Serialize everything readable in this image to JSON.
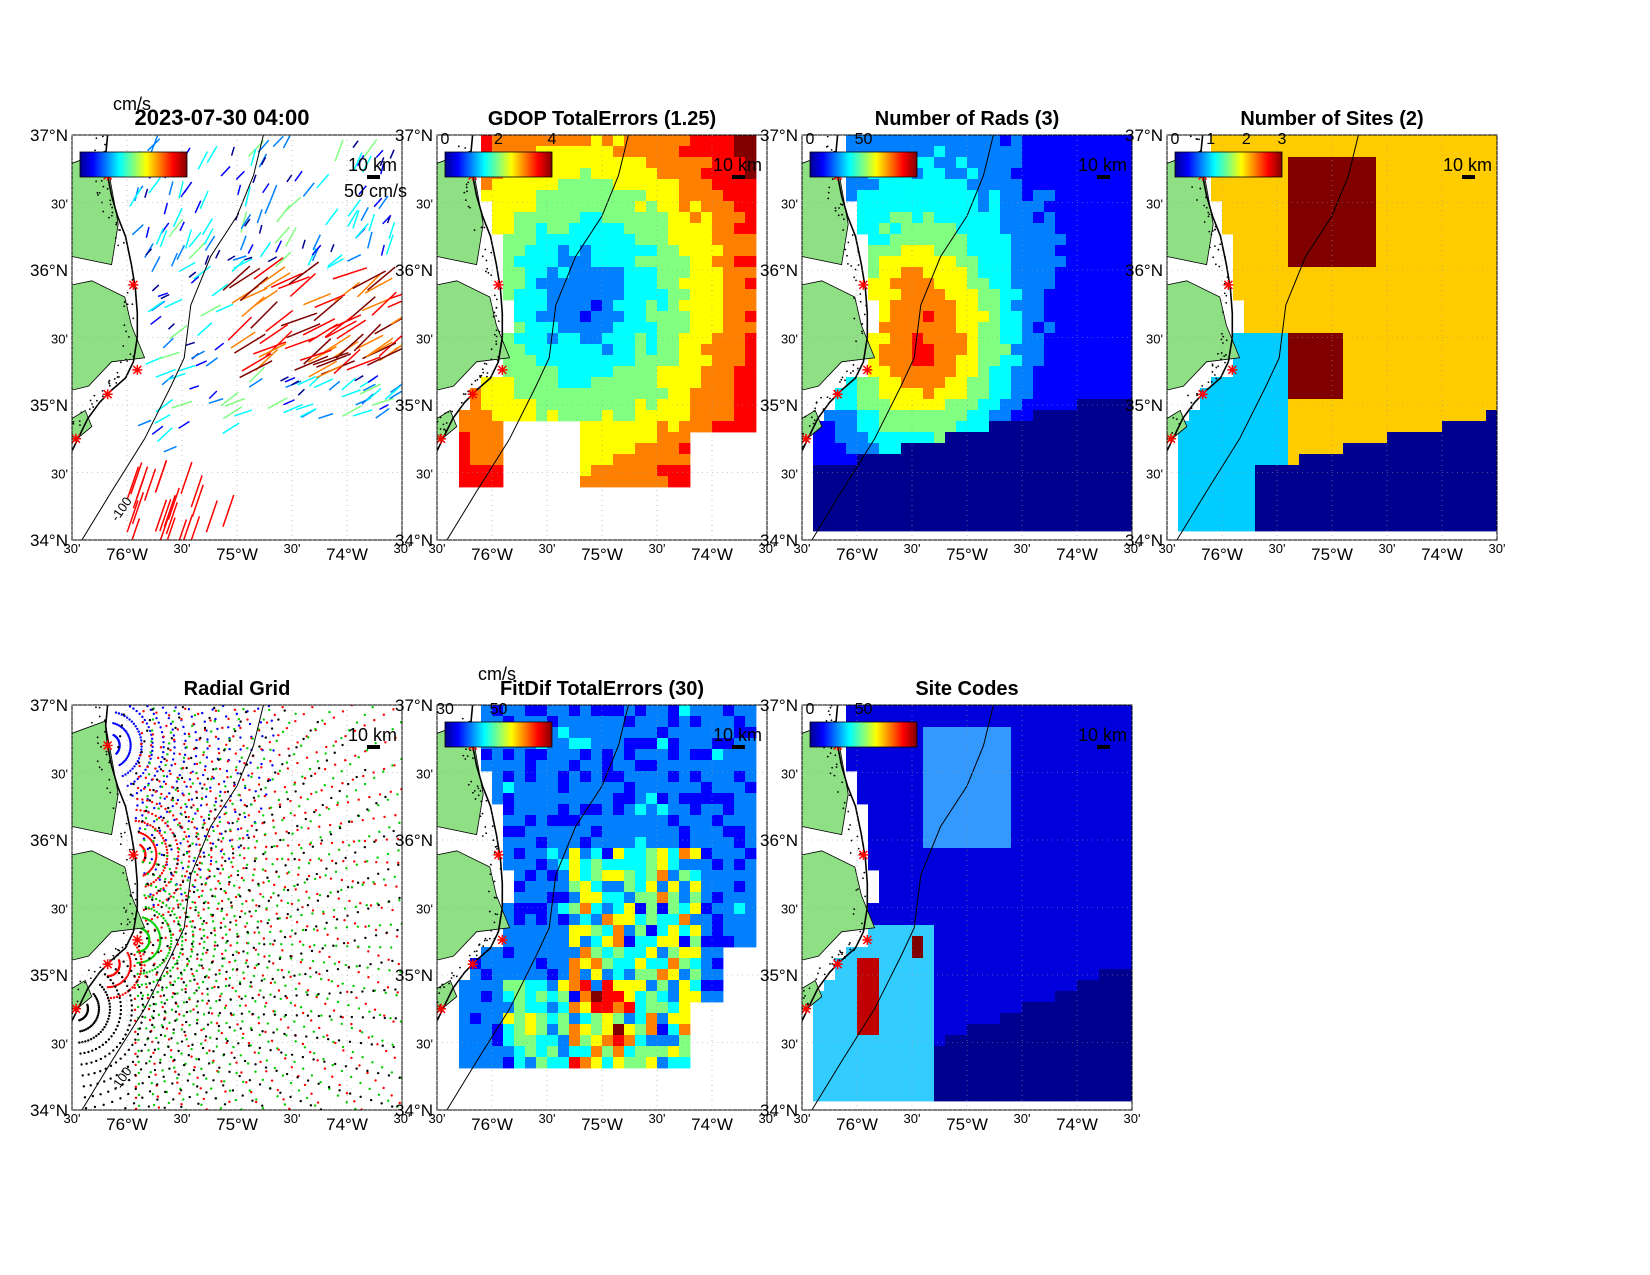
{
  "colors": {
    "land": "#8fdf85",
    "site_marker": "#ff0000",
    "cmap": [
      "#00008f",
      "#0000ff",
      "#0080ff",
      "#00ffff",
      "#80ff80",
      "#ffff00",
      "#ff8000",
      "#ff0000",
      "#800000"
    ]
  },
  "axes": {
    "lat_ticks": [
      "37°N",
      "30'",
      "36°N",
      "30'",
      "35°N",
      "30'",
      "34°N"
    ],
    "lon_ticks": [
      "30'",
      "76°W",
      "30'",
      "75°W",
      "30'",
      "74°W",
      "30'"
    ]
  },
  "figure": {
    "panels": [
      {
        "id": "vectors",
        "title": "2023-07-30 04:00",
        "colorbar_label": "cm/s",
        "colorbar_ticks": [],
        "speed_label": "50 cm/s",
        "scale_label": "10 km",
        "contour_label": "-100"
      },
      {
        "id": "gdop",
        "title": "GDOP TotalErrors (1.25)",
        "colorbar_label": "",
        "colorbar_ticks": [
          "0",
          "2",
          "4"
        ],
        "scale_label": "10 km",
        "contour_label": "1.25"
      },
      {
        "id": "rads",
        "title": "Number of Rads (3)",
        "colorbar_label": "",
        "colorbar_ticks": [
          "0",
          "50"
        ],
        "scale_label": "10 km",
        "contour_label": "3"
      },
      {
        "id": "sites",
        "title": "Number of Sites (2)",
        "colorbar_label": "",
        "colorbar_ticks": [
          "0",
          "1",
          "2",
          "3"
        ],
        "scale_label": "10 km",
        "contour_label": "2"
      },
      {
        "id": "radial",
        "title": "Radial Grid",
        "colorbar_label": "",
        "colorbar_ticks": [],
        "scale_label": "10 km",
        "contour_label": "-100"
      },
      {
        "id": "fitdif",
        "title": "FitDif TotalErrors (30)",
        "colorbar_label": "cm/s",
        "colorbar_ticks": [
          "30",
          "50"
        ],
        "scale_label": "10 km",
        "contour_label": "30"
      },
      {
        "id": "codes",
        "title": "Site Codes",
        "colorbar_label": "",
        "colorbar_ticks": [
          "0",
          "50"
        ],
        "scale_label": "10 km",
        "contour_label": ""
      }
    ]
  }
}
